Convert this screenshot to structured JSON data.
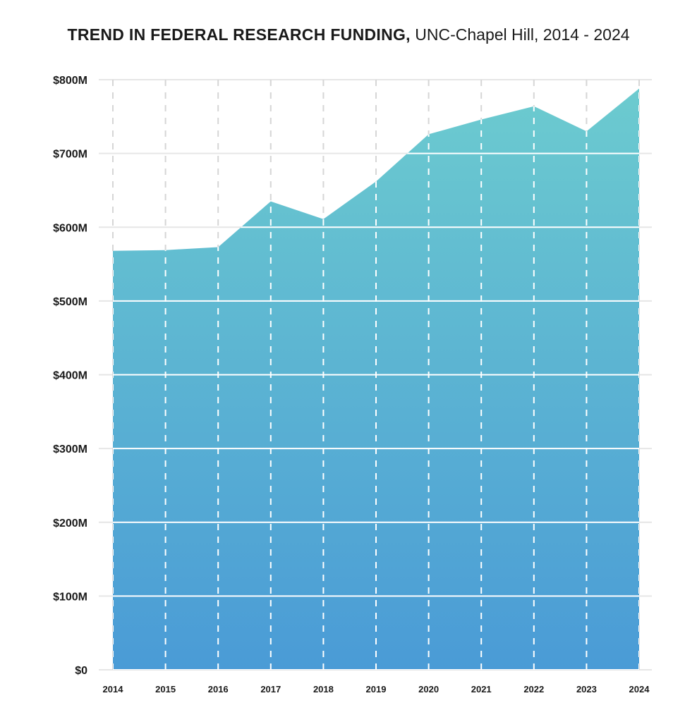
{
  "chart_data": {
    "type": "area",
    "title": "TREND IN FEDERAL RESEARCH FUNDING,",
    "subtitle": "UNC-Chapel Hill, 2014 - 2024",
    "xlabel": "",
    "ylabel": "",
    "x": [
      "2014",
      "2015",
      "2016",
      "2017",
      "2018",
      "2019",
      "2020",
      "2021",
      "2022",
      "2023",
      "2024"
    ],
    "y": [
      568,
      569,
      573,
      635,
      611,
      662,
      726,
      746,
      764,
      730,
      788
    ],
    "y_unit": "$M",
    "ylim": [
      0,
      800
    ],
    "yticks": [
      0,
      100,
      200,
      300,
      400,
      500,
      600,
      700,
      800
    ],
    "ytick_labels": [
      "$0",
      "$100M",
      "$200M",
      "$300M",
      "$400M",
      "$500M",
      "$600M",
      "$700M",
      "$800M"
    ],
    "grid": {
      "horizontal": "solid",
      "vertical": "dashed"
    },
    "legend": "none",
    "colors": {
      "area_top": "#6ccbcf",
      "area_bottom": "#4a9bd6",
      "grid_horizontal": "#e6e6e6",
      "grid_on_area": "#ffffff",
      "grid_vertical": "#d6d6d6"
    }
  }
}
